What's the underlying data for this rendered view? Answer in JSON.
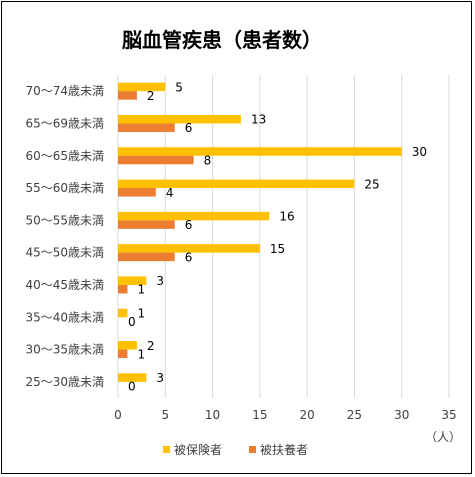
{
  "chart_data": {
    "type": "bar",
    "orientation": "horizontal",
    "title": "脳血管疾患（患者数）",
    "categories": [
      "70～74歳未満",
      "65～69歳未満",
      "60～65歳未満",
      "55～60歳未満",
      "50～55歳未満",
      "45～50歳未満",
      "40～45歳未満",
      "35～40歳未満",
      "30～35歳未満",
      "25～30歳未満"
    ],
    "series": [
      {
        "name": "被保険者",
        "color": "#FFC000",
        "values": [
          5,
          13,
          30,
          25,
          16,
          15,
          3,
          1,
          2,
          3
        ]
      },
      {
        "name": "被扶養者",
        "color": "#ED7D31",
        "values": [
          2,
          6,
          8,
          4,
          6,
          6,
          1,
          0,
          1,
          0
        ]
      }
    ],
    "x_ticks": [
      0,
      5,
      10,
      15,
      20,
      25,
      30,
      35
    ],
    "xlim": [
      0,
      35
    ],
    "x_unit_label": "（人）",
    "grid": "vertical",
    "data_labels": true,
    "legend_position": "bottom"
  }
}
